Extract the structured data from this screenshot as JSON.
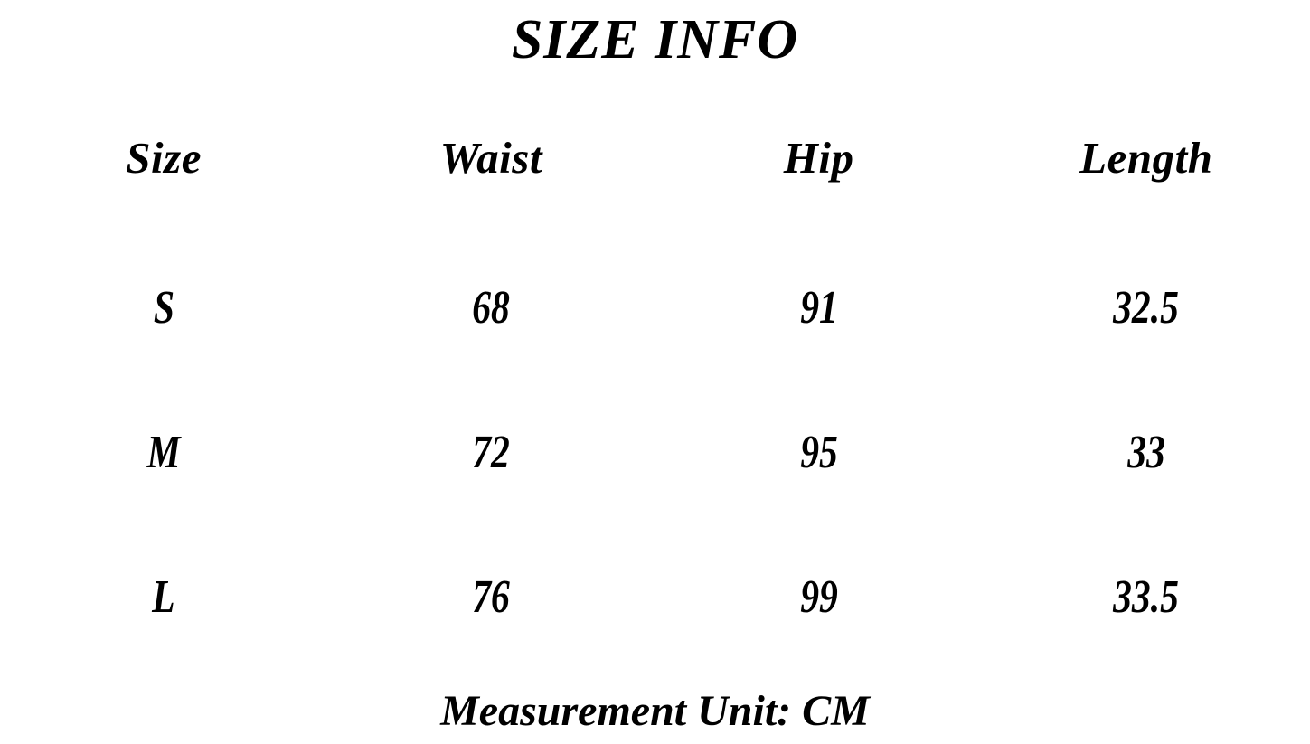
{
  "title": "SIZE INFO",
  "table": {
    "headers": [
      "Size",
      "Waist",
      "Hip",
      "Length"
    ],
    "rows": [
      [
        "S",
        "68",
        "91",
        "32.5"
      ],
      [
        "M",
        "72",
        "95",
        "33"
      ],
      [
        "L",
        "76",
        "99",
        "33.5"
      ]
    ]
  },
  "footer": "Measurement Unit: CM",
  "colors": {
    "text": "#000000",
    "background": "#ffffff"
  }
}
